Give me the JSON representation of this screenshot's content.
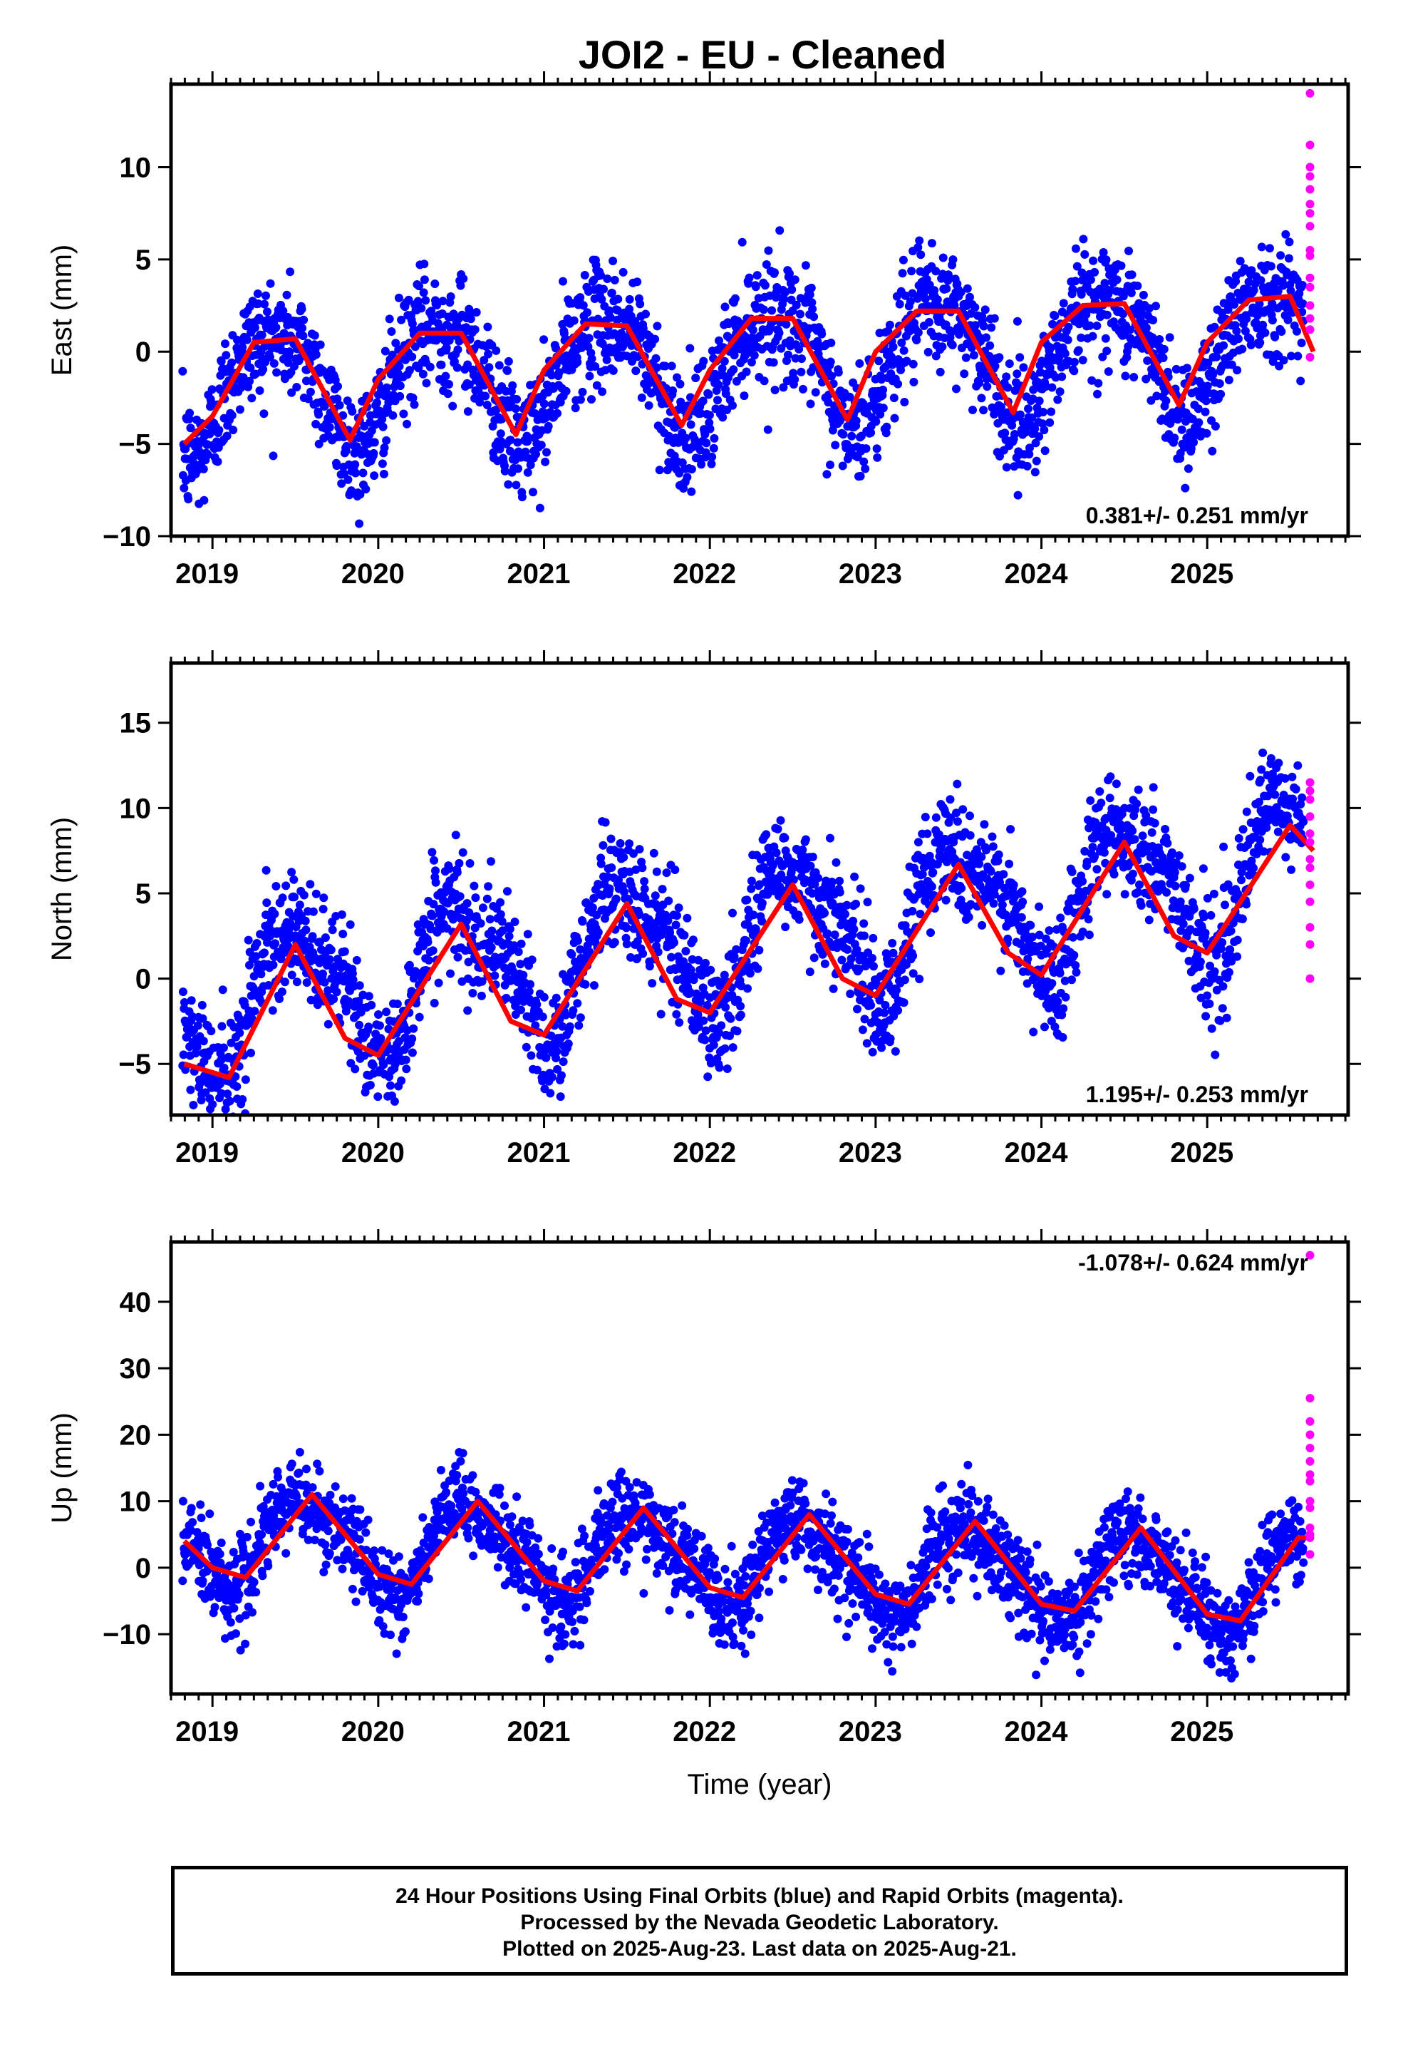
{
  "title": "JOI2  - EU - Cleaned",
  "colors": {
    "final": "#0000ff",
    "rapid": "#ff00ff",
    "fit": "#ff0000",
    "axis": "#000000"
  },
  "footer": {
    "line1": "24 Hour Positions Using Final Orbits (blue) and Rapid Orbits (magenta).",
    "line2": "Processed by the Nevada Geodetic Laboratory.",
    "line3": "Plotted on 2025-Aug-23. Last data on 2025-Aug-21."
  },
  "chart_data": [
    {
      "type": "scatter",
      "ylabel": "East (mm)",
      "xlabel": "",
      "xlim": [
        2018.75,
        2025.85
      ],
      "ylim": [
        -10,
        14.5
      ],
      "x_ticks": [
        2019,
        2020,
        2021,
        2022,
        2023,
        2024,
        2025
      ],
      "y_ticks": [
        10,
        5,
        0,
        -5,
        -10
      ],
      "y_tick_labels": [
        "10",
        "5",
        "0",
        "−5",
        "−10"
      ],
      "rate_label": "0.381+/- 0.251 mm/yr",
      "rate_position": "bottom-right",
      "grid": false,
      "model": {
        "trend_start": -2.0,
        "rate": 0.381,
        "annual_amp": 3.2,
        "annual_phase": 0.12,
        "semi_amp": 0.6,
        "semi_phase": 0.5
      },
      "fit": {
        "x": [
          2018.83,
          2019.0,
          2019.25,
          2019.5,
          2019.83,
          2020.0,
          2020.25,
          2020.5,
          2020.83,
          2021.0,
          2021.25,
          2021.5,
          2021.83,
          2022.0,
          2022.25,
          2022.5,
          2022.83,
          2023.0,
          2023.25,
          2023.5,
          2023.83,
          2024.0,
          2024.25,
          2024.5,
          2024.83,
          2025.0,
          2025.25,
          2025.5,
          2025.64
        ],
        "y": [
          -5.0,
          -3.5,
          0.5,
          0.7,
          -4.8,
          -1.5,
          1.0,
          1.0,
          -4.5,
          -1.0,
          1.5,
          1.4,
          -4.0,
          -1.0,
          1.8,
          1.8,
          -3.7,
          0.0,
          2.2,
          2.2,
          -3.3,
          0.5,
          2.5,
          2.6,
          -2.9,
          0.5,
          2.8,
          3.0,
          0.0
        ]
      },
      "final_points": {
        "x_range": [
          2018.82,
          2025.58
        ],
        "approx_count": 2400,
        "scatter_sd": 1.6
      },
      "rapid_points": {
        "x": 2025.62,
        "y": [
          14.0,
          11.2,
          10.0,
          9.5,
          8.8,
          8.0,
          7.5,
          6.8,
          5.5,
          5.2,
          4.0,
          3.5,
          2.5,
          1.8,
          1.2,
          -0.3
        ]
      }
    },
    {
      "type": "scatter",
      "ylabel": "North (mm)",
      "xlabel": "",
      "xlim": [
        2018.75,
        2025.85
      ],
      "ylim": [
        -8,
        18.5
      ],
      "x_ticks": [
        2019,
        2020,
        2021,
        2022,
        2023,
        2024,
        2025
      ],
      "y_ticks": [
        15,
        10,
        5,
        0,
        -5
      ],
      "y_tick_labels": [
        "15",
        "10",
        "5",
        "0",
        "−5"
      ],
      "rate_label": "1.195+/- 0.253 mm/yr",
      "rate_position": "bottom-right",
      "grid": false,
      "model": {
        "trend_start": -1.6,
        "rate": 1.195,
        "annual_amp": 3.9,
        "annual_phase": 0.25,
        "semi_amp": 1.2,
        "semi_phase": 0.2
      },
      "fit": {
        "x": [
          2018.83,
          2019.1,
          2019.5,
          2019.8,
          2020.0,
          2020.5,
          2020.8,
          2021.0,
          2021.5,
          2021.8,
          2022.0,
          2022.5,
          2022.8,
          2023.0,
          2023.5,
          2023.8,
          2024.0,
          2024.5,
          2024.8,
          2025.0,
          2025.5,
          2025.64
        ],
        "y": [
          -5.0,
          -5.8,
          2.0,
          -3.5,
          -4.5,
          3.2,
          -2.5,
          -3.3,
          4.4,
          -1.2,
          -2.0,
          5.5,
          0.0,
          -1.0,
          6.7,
          1.5,
          0.2,
          8.0,
          2.5,
          1.5,
          9.0,
          7.5
        ]
      },
      "final_points": {
        "x_range": [
          2018.82,
          2025.58
        ],
        "approx_count": 2400,
        "scatter_sd": 1.7
      },
      "rapid_points": {
        "x": 2025.62,
        "y": [
          11.5,
          11.0,
          10.5,
          9.5,
          8.5,
          8.0,
          7.0,
          6.5,
          5.5,
          4.5,
          3.0,
          2.0,
          0.0
        ]
      }
    },
    {
      "type": "scatter",
      "ylabel": "Up (mm)",
      "xlabel": "Time (year)",
      "xlim": [
        2018.75,
        2025.85
      ],
      "ylim": [
        -19,
        49
      ],
      "x_ticks": [
        2019,
        2020,
        2021,
        2022,
        2023,
        2024,
        2025
      ],
      "y_ticks": [
        40,
        30,
        20,
        10,
        0,
        -10
      ],
      "y_tick_labels": [
        "40",
        "30",
        "20",
        "10",
        "0",
        "−10"
      ],
      "rate_label": "-1.078+/- 0.624 mm/yr",
      "rate_position": "top-right",
      "grid": false,
      "model": {
        "trend_start": 4.6,
        "rate": -1.078,
        "annual_amp": 6.5,
        "annual_phase": 0.32,
        "semi_amp": 1.5,
        "semi_phase": 0.3
      },
      "fit": {
        "x": [
          2018.83,
          2019.0,
          2019.2,
          2019.6,
          2020.0,
          2020.2,
          2020.6,
          2021.0,
          2021.2,
          2021.6,
          2022.0,
          2022.2,
          2022.6,
          2023.0,
          2023.2,
          2023.6,
          2024.0,
          2024.2,
          2024.6,
          2025.0,
          2025.2,
          2025.55,
          2025.64
        ],
        "y": [
          4.0,
          0.0,
          -1.5,
          11.0,
          -1.0,
          -2.5,
          10.0,
          -2.0,
          -3.5,
          9.0,
          -3.0,
          -4.5,
          8.0,
          -4.0,
          -5.5,
          7.0,
          -5.5,
          -6.5,
          6.0,
          -7.0,
          -8.0,
          4.5,
          4.5
        ]
      },
      "final_points": {
        "x_range": [
          2018.82,
          2025.58
        ],
        "approx_count": 2400,
        "scatter_sd": 3.2
      },
      "rapid_points": {
        "x": 2025.62,
        "y": [
          47.0,
          25.5,
          22.0,
          20.0,
          18.0,
          16.0,
          14.0,
          13.0,
          10.0,
          9.0,
          6.0,
          5.0,
          4.5,
          2.0
        ]
      }
    }
  ]
}
